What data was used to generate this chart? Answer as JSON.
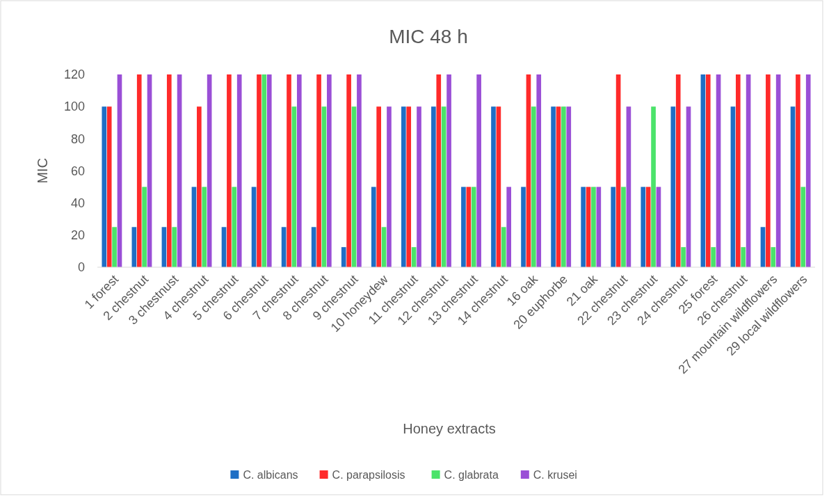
{
  "chart_data": {
    "type": "bar",
    "title": "MIC 48 h",
    "xlabel": "Honey extracts",
    "ylabel": "MIC",
    "categories": [
      "1 forest",
      "2 chestnut",
      "3 chestnust",
      "4 chestnut",
      "5 chestnut",
      "6 chestnut",
      "7 chestnut",
      "8 chestnut",
      "9 chestnut",
      "10 honeydew",
      "11 chestnut",
      "12 chestnut",
      "13 chestnut",
      "14 chestnut",
      "16 oak",
      "20 euphorbe",
      "21 oak",
      "22 chestnut",
      "23 chestnut",
      "24 chestnut",
      "25 forest",
      "26 chestnut",
      "27 mountain wildflowers",
      "29 local wildflowers"
    ],
    "series": [
      {
        "name": "C. albicans",
        "color": "#1f6fc5",
        "values": [
          100,
          25,
          25,
          50,
          25,
          50,
          25,
          25,
          12.5,
          50,
          100,
          100,
          50,
          100,
          50,
          100,
          50,
          50,
          50,
          100,
          120,
          100,
          25,
          100
        ]
      },
      {
        "name": "C. parapsilosis",
        "color": "#ff2a2a",
        "values": [
          100,
          120,
          120,
          100,
          120,
          120,
          120,
          120,
          120,
          100,
          100,
          120,
          50,
          100,
          120,
          100,
          50,
          120,
          50,
          120,
          120,
          120,
          120,
          120
        ]
      },
      {
        "name": "C. glabrata",
        "color": "#4be36a",
        "values": [
          25,
          50,
          25,
          50,
          50,
          120,
          100,
          100,
          100,
          25,
          12.5,
          100,
          50,
          25,
          100,
          100,
          50,
          50,
          100,
          12.5,
          12.5,
          12.5,
          12.5,
          50
        ]
      },
      {
        "name": "C. krusei",
        "color": "#9a4fd6",
        "values": [
          120,
          120,
          120,
          120,
          120,
          120,
          120,
          120,
          120,
          100,
          100,
          120,
          120,
          50,
          120,
          100,
          50,
          100,
          50,
          100,
          120,
          120,
          120,
          120
        ]
      }
    ],
    "ylim": [
      0,
      120
    ],
    "yticks": [
      0,
      20,
      40,
      60,
      80,
      100,
      120
    ],
    "grid": false,
    "legend": "bottom"
  }
}
